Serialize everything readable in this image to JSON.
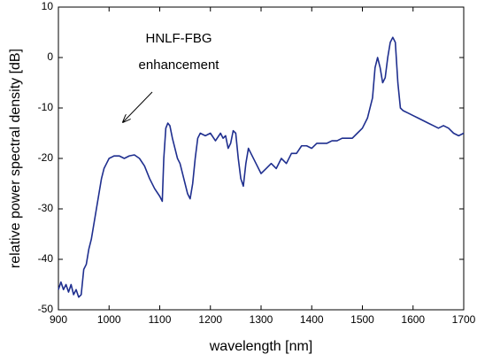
{
  "chart_data": {
    "type": "line",
    "xlabel": "wavelength  [nm]",
    "ylabel": "relative power spectral density  [dB]",
    "annotation": [
      "HNLF-FBG",
      "enhancement"
    ],
    "x": [
      900,
      905,
      910,
      915,
      920,
      925,
      930,
      935,
      940,
      945,
      950,
      955,
      960,
      965,
      970,
      975,
      980,
      985,
      990,
      995,
      1000,
      1010,
      1020,
      1030,
      1040,
      1050,
      1060,
      1070,
      1080,
      1090,
      1100,
      1105,
      1108,
      1112,
      1116,
      1120,
      1125,
      1130,
      1135,
      1140,
      1145,
      1150,
      1155,
      1160,
      1165,
      1170,
      1175,
      1180,
      1190,
      1200,
      1210,
      1220,
      1225,
      1230,
      1235,
      1240,
      1245,
      1250,
      1255,
      1260,
      1265,
      1270,
      1275,
      1280,
      1290,
      1300,
      1310,
      1320,
      1330,
      1340,
      1350,
      1360,
      1370,
      1380,
      1390,
      1400,
      1410,
      1420,
      1430,
      1440,
      1450,
      1460,
      1470,
      1480,
      1490,
      1500,
      1510,
      1520,
      1525,
      1530,
      1535,
      1540,
      1545,
      1550,
      1555,
      1560,
      1565,
      1570,
      1575,
      1580,
      1590,
      1600,
      1610,
      1620,
      1630,
      1640,
      1650,
      1660,
      1670,
      1680,
      1690,
      1700
    ],
    "series": [
      {
        "color": "#1f2f8f",
        "values": [
          -46,
          -44.5,
          -46,
          -45,
          -46.5,
          -45,
          -47,
          -46,
          -47.5,
          -47,
          -42,
          -41,
          -38,
          -36,
          -33,
          -30,
          -27,
          -24,
          -22,
          -21,
          -20,
          -19.5,
          -19.5,
          -20,
          -19.5,
          -19.3,
          -20,
          -21.5,
          -24,
          -26,
          -27.5,
          -28.5,
          -20,
          -14,
          -13,
          -13.5,
          -16,
          -18,
          -20,
          -21,
          -23,
          -25,
          -27,
          -28,
          -25,
          -20,
          -16,
          -15,
          -15.5,
          -15,
          -16.5,
          -15,
          -16,
          -15.5,
          -18,
          -17,
          -14.5,
          -15,
          -20,
          -24,
          -25.5,
          -21,
          -18,
          -19,
          -21,
          -23,
          -22,
          -21,
          -22,
          -20,
          -21,
          -19,
          -19,
          -17.5,
          -17.5,
          -18,
          -17,
          -17,
          -17,
          -16.5,
          -16.5,
          -16,
          -16,
          -16,
          -15,
          -14,
          -12,
          -8,
          -2,
          0,
          -2,
          -5,
          -4,
          0,
          3,
          4,
          3,
          -5,
          -10,
          -10.5,
          -11,
          -11.5,
          -12,
          -12.5,
          -13,
          -13.5,
          -14,
          -13.5,
          -14,
          -15,
          -15.5,
          -15
        ]
      }
    ],
    "xlim": [
      900,
      1700
    ],
    "xticks": [
      900,
      1000,
      1100,
      1200,
      1300,
      1400,
      1500,
      1600,
      1700
    ],
    "ylim": [
      -50,
      10
    ],
    "yticks": [
      -50,
      -40,
      -30,
      -20,
      -10,
      0,
      10
    ],
    "grid": false
  }
}
